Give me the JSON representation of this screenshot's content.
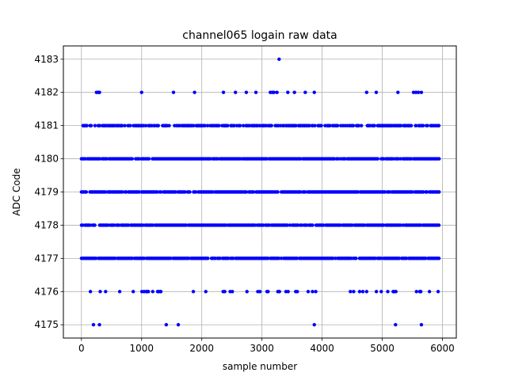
{
  "chart_data": {
    "type": "scatter",
    "title": "channel065 logain raw data",
    "xlabel": "sample number",
    "ylabel": "ADC Code",
    "xlim": [
      -300,
      6230
    ],
    "ylim": [
      4174.6,
      4183.4
    ],
    "xticks": [
      0,
      1000,
      2000,
      3000,
      4000,
      5000,
      6000
    ],
    "yticks": [
      4175,
      4176,
      4177,
      4178,
      4179,
      4180,
      4181,
      4182,
      4183
    ],
    "grid": true,
    "marker_color": "#0000ff",
    "series": [
      {
        "name": "",
        "sample_count": 5950,
        "dense_levels": [
          4177,
          4178,
          4179,
          4180
        ],
        "sparse_levels": {
          "4181": "frequent",
          "4176": "occasional"
        },
        "x": [
          3285,
          250,
          280,
          300,
          1000,
          1530,
          1880,
          2360,
          2560,
          2740,
          2900,
          3140,
          3175,
          3200,
          3250,
          3430,
          3540,
          3720,
          3870,
          4740,
          4900,
          5260,
          5520,
          5560,
          5600,
          5650,
          200,
          300,
          1410,
          1610,
          3870,
          5220,
          5650
        ],
        "y": [
          4183,
          4182,
          4182,
          4182,
          4182,
          4182,
          4182,
          4182,
          4182,
          4182,
          4182,
          4182,
          4182,
          4182,
          4182,
          4182,
          4182,
          4182,
          4182,
          4182,
          4182,
          4182,
          4182,
          4182,
          4182,
          4182,
          4175,
          4175,
          4175,
          4175,
          4175,
          4175,
          4175
        ]
      }
    ]
  }
}
